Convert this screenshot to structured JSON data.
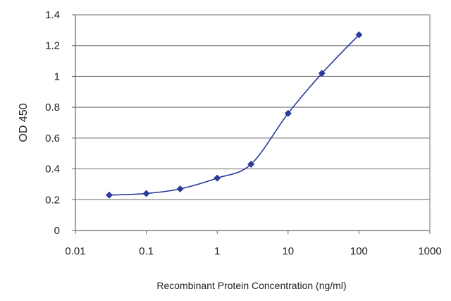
{
  "chart_data": {
    "type": "line",
    "x_scale": "log",
    "xlabel": "Recombinant Protein Concentration (ng/ml)",
    "ylabel": "OD 450",
    "xlim": [
      0.01,
      1000
    ],
    "ylim": [
      0,
      1.4
    ],
    "x_ticks": [
      0.01,
      0.1,
      1,
      10,
      100,
      1000
    ],
    "x_tick_labels": [
      "0.01",
      "0.1",
      "1",
      "10",
      "100",
      "1000"
    ],
    "y_ticks": [
      0,
      0.2,
      0.4,
      0.6,
      0.8,
      1,
      1.2,
      1.4
    ],
    "y_tick_labels": [
      "0",
      "0.2",
      "0.4",
      "0.6",
      "0.8",
      "1",
      "1.2",
      "1.4"
    ],
    "grid": "horizontal",
    "colors": {
      "series": "#2b3a9b",
      "grid": "#888888",
      "axis": "#666666"
    },
    "series": [
      {
        "x": [
          0.03,
          0.1,
          0.3,
          1,
          3,
          10,
          30,
          100
        ],
        "y": [
          0.23,
          0.24,
          0.27,
          0.34,
          0.43,
          0.76,
          1.02,
          1.27
        ]
      }
    ]
  }
}
